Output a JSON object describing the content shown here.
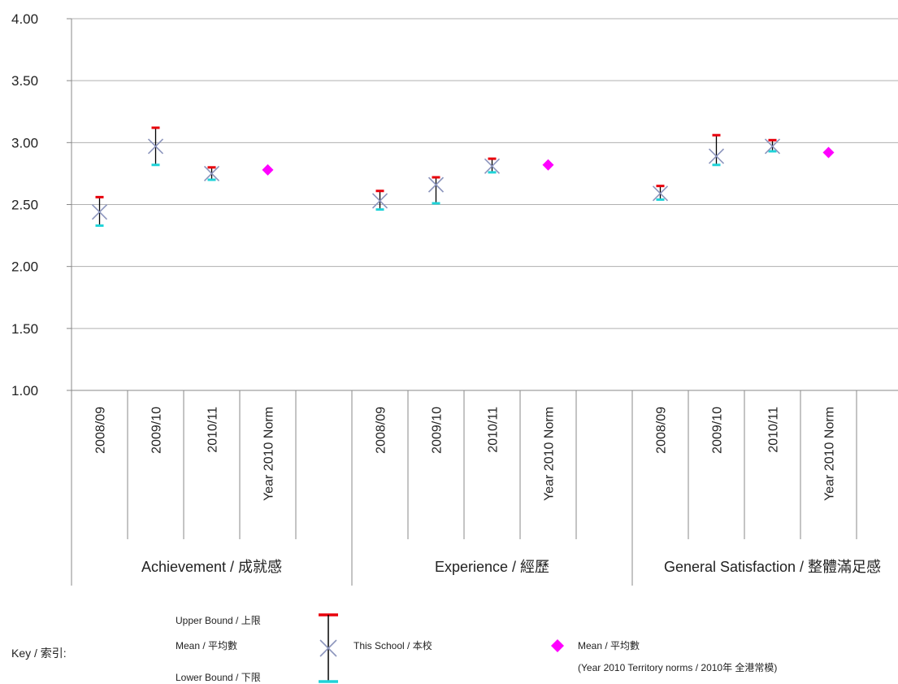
{
  "chart_data": {
    "type": "scatter",
    "title": "",
    "ylim": [
      1.0,
      4.0
    ],
    "yticks": [
      "1.00",
      "1.50",
      "2.00",
      "2.50",
      "3.00",
      "3.50",
      "4.00"
    ],
    "grid": true,
    "groups": [
      {
        "name": "Achievement / 成就感",
        "categories": [
          "2008/09",
          "2009/10",
          "2010/11",
          "Year 2010 Norm"
        ],
        "school": [
          {
            "mean": 2.44,
            "upper": 2.56,
            "lower": 2.33
          },
          {
            "mean": 2.97,
            "upper": 3.12,
            "lower": 2.82
          },
          {
            "mean": 2.75,
            "upper": 2.8,
            "lower": 2.7
          }
        ],
        "norm_mean": 2.78
      },
      {
        "name": "Experience / 經歷",
        "categories": [
          "2008/09",
          "2009/10",
          "2010/11",
          "Year 2010 Norm"
        ],
        "school": [
          {
            "mean": 2.53,
            "upper": 2.61,
            "lower": 2.46
          },
          {
            "mean": 2.66,
            "upper": 2.72,
            "lower": 2.51
          },
          {
            "mean": 2.81,
            "upper": 2.87,
            "lower": 2.76
          }
        ],
        "norm_mean": 2.82
      },
      {
        "name": "General Satisfaction / 整體滿足感",
        "categories": [
          "2008/09",
          "2009/10",
          "2010/11",
          "Year 2010 Norm"
        ],
        "school": [
          {
            "mean": 2.59,
            "upper": 2.65,
            "lower": 2.54
          },
          {
            "mean": 2.89,
            "upper": 3.06,
            "lower": 2.82
          },
          {
            "mean": 2.97,
            "upper": 3.02,
            "lower": 2.93
          }
        ],
        "norm_mean": 2.92
      }
    ],
    "colors": {
      "upper": "#e8000b",
      "lower": "#1fd3d8",
      "mean_marker": "#8c95bd",
      "whisker": "#000000",
      "norm": "#ff00ff",
      "grid": "#b0b0b0"
    }
  },
  "key": {
    "title": "Key / 索引:",
    "upper_label": "Upper Bound / 上限",
    "mean_label": "Mean  / 平均數",
    "lower_label": "Lower Bound  / 下限",
    "school_label": "This School / 本校",
    "norm_mean_label": "Mean  / 平均數",
    "norm_note": "(Year 2010 Territory norms / 2010年 全港常模)"
  }
}
